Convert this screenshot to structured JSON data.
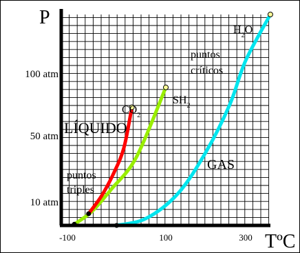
{
  "chart_data": {
    "type": "line",
    "title": "",
    "y_axis_symbol": "P",
    "x_axis_symbol": "TºC",
    "x_ticks": [
      {
        "value": -100,
        "label": "-100"
      },
      {
        "value": 100,
        "label": "100"
      },
      {
        "value": 300,
        "label": "300"
      }
    ],
    "y_ticks": [
      {
        "value": 10,
        "label": "10 atm"
      },
      {
        "value": 50,
        "label": "50 atm"
      },
      {
        "value": 100,
        "label": "100 atm"
      }
    ],
    "xlim": [
      -110,
      370
    ],
    "ylim": [
      0,
      145
    ],
    "grid": true,
    "series": [
      {
        "name": "CO2",
        "label_main": "CO",
        "label_sub": "2",
        "color": "#ff0000",
        "points": [
          [
            -57,
            5
          ],
          [
            -30,
            14
          ],
          [
            -5,
            28
          ],
          [
            15,
            43
          ],
          [
            31,
            73
          ]
        ],
        "triple_point": [
          -57,
          5
        ],
        "critical_point": [
          31,
          73
        ]
      },
      {
        "name": "SH2",
        "label_main": "SH",
        "label_sub": "2",
        "color": "#99ee00",
        "points": [
          [
            -86,
            0.5
          ],
          [
            -50,
            6
          ],
          [
            -10,
            18
          ],
          [
            40,
            37
          ],
          [
            100,
            89
          ]
        ],
        "triple_point": [
          -86,
          0.5
        ],
        "critical_point": [
          100,
          89
        ]
      },
      {
        "name": "H2O",
        "label_main": "H",
        "label_sub": "2",
        "label_suffix": "O",
        "color": "#00e5ee",
        "points": [
          [
            0,
            0
          ],
          [
            60,
            3
          ],
          [
            130,
            15
          ],
          [
            200,
            40
          ],
          [
            260,
            75
          ],
          [
            300,
            110
          ],
          [
            374,
            145
          ]
        ],
        "triple_point": [
          0,
          0
        ],
        "critical_point": [
          374,
          145
        ]
      }
    ],
    "annotations": {
      "liquid": "LÍQUIDO",
      "gas": "GAS",
      "critical_line1": "puntos",
      "critical_line2": "críticos",
      "triple_line1": "puntos",
      "triple_line2": "triples"
    },
    "colors": {
      "axis": "#000000",
      "grid": "#000000",
      "triple_point": "#000000",
      "critical_point_fill": "#ffff99"
    }
  }
}
